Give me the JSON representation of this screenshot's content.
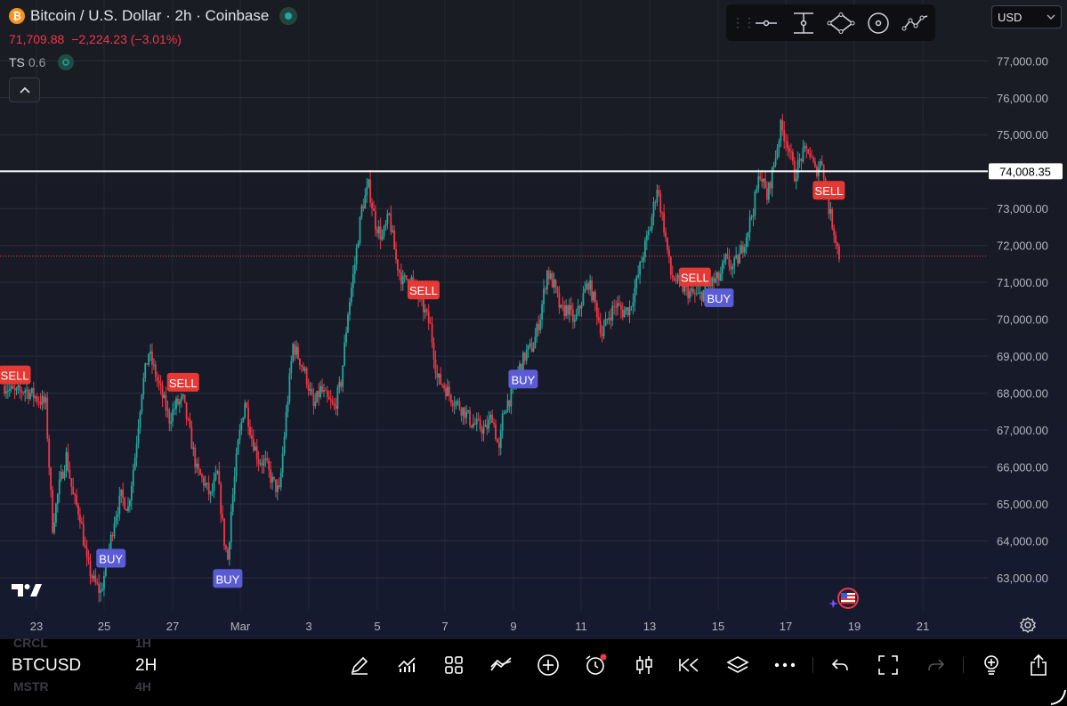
{
  "header": {
    "title": "Bitcoin / U.S. Dollar · 2h · Coinbase",
    "btc_glyph": "₿",
    "price": "71,709.88",
    "change": "−2,224.23 (−3.01%)",
    "ts_label": "TS",
    "ts_value": "0.6"
  },
  "currency_select": {
    "value": "USD"
  },
  "colors": {
    "up": "#26a69a",
    "down": "#f23645",
    "buy": "#5b5bd6",
    "sell": "#e53935",
    "bg": "#1a1c23"
  },
  "price_axis": {
    "labels": [
      "77,000.00",
      "76,000.00",
      "75,000.00",
      "73,000.00",
      "72,000.00",
      "71,000.00",
      "70,000.00",
      "69,000.00",
      "68,000.00",
      "67,000.00",
      "66,000.00",
      "65,000.00",
      "64,000.00",
      "63,000.00"
    ],
    "level_label": "74,008.35"
  },
  "time_axis": {
    "labels": [
      "23",
      "25",
      "27",
      "Mar",
      "3",
      "5",
      "7",
      "9",
      "11",
      "13",
      "15",
      "17",
      "19",
      "21"
    ]
  },
  "chart_data": {
    "type": "candlestick",
    "symbol": "BTCUSD",
    "interval": "2H",
    "ylim": [
      62000,
      77500
    ],
    "horizontal_line": 74008.35,
    "last_price": 71709.88,
    "x_ticks": [
      "23",
      "25",
      "27",
      "Mar",
      "3",
      "5",
      "7",
      "9",
      "11",
      "13",
      "15",
      "17",
      "19",
      "21"
    ],
    "close_path": [
      [
        0,
        68200
      ],
      [
        3,
        68000
      ],
      [
        6,
        68100
      ],
      [
        9,
        67900
      ],
      [
        12,
        67700
      ],
      [
        14,
        64400
      ],
      [
        16,
        65500
      ],
      [
        18,
        66300
      ],
      [
        20,
        65200
      ],
      [
        22,
        64700
      ],
      [
        24,
        63400
      ],
      [
        26,
        62900
      ],
      [
        28,
        62600
      ],
      [
        30,
        63500
      ],
      [
        32,
        64600
      ],
      [
        34,
        65200
      ],
      [
        36,
        64900
      ],
      [
        38,
        66300
      ],
      [
        40,
        68100
      ],
      [
        42,
        69100
      ],
      [
        44,
        68500
      ],
      [
        46,
        67900
      ],
      [
        48,
        67300
      ],
      [
        50,
        67700
      ],
      [
        52,
        67800
      ],
      [
        54,
        66900
      ],
      [
        56,
        65900
      ],
      [
        58,
        65600
      ],
      [
        60,
        65200
      ],
      [
        62,
        65800
      ],
      [
        64,
        64000
      ],
      [
        65,
        63500
      ],
      [
        66,
        64800
      ],
      [
        68,
        66600
      ],
      [
        70,
        67800
      ],
      [
        72,
        66800
      ],
      [
        74,
        66200
      ],
      [
        76,
        66100
      ],
      [
        78,
        65600
      ],
      [
        80,
        65300
      ],
      [
        82,
        67400
      ],
      [
        84,
        69300
      ],
      [
        86,
        68900
      ],
      [
        88,
        68400
      ],
      [
        90,
        67600
      ],
      [
        92,
        68100
      ],
      [
        94,
        67800
      ],
      [
        96,
        67600
      ],
      [
        98,
        68300
      ],
      [
        100,
        70200
      ],
      [
        102,
        71500
      ],
      [
        104,
        73000
      ],
      [
        106,
        73600
      ],
      [
        108,
        72600
      ],
      [
        110,
        72200
      ],
      [
        112,
        72800
      ],
      [
        114,
        71600
      ],
      [
        116,
        71000
      ],
      [
        118,
        71200
      ],
      [
        120,
        70700
      ],
      [
        122,
        70300
      ],
      [
        124,
        69800
      ],
      [
        126,
        68400
      ],
      [
        128,
        68200
      ],
      [
        130,
        67900
      ],
      [
        132,
        67700
      ],
      [
        134,
        67500
      ],
      [
        136,
        67200
      ],
      [
        138,
        67100
      ],
      [
        140,
        67000
      ],
      [
        142,
        67400
      ],
      [
        144,
        66400
      ],
      [
        145,
        67300
      ],
      [
        146,
        67700
      ],
      [
        148,
        68000
      ],
      [
        150,
        68700
      ],
      [
        152,
        69100
      ],
      [
        154,
        69300
      ],
      [
        156,
        70100
      ],
      [
        158,
        71300
      ],
      [
        160,
        70900
      ],
      [
        162,
        70200
      ],
      [
        164,
        70300
      ],
      [
        166,
        69900
      ],
      [
        168,
        70500
      ],
      [
        170,
        71000
      ],
      [
        172,
        70400
      ],
      [
        174,
        69600
      ],
      [
        176,
        70100
      ],
      [
        178,
        70400
      ],
      [
        180,
        70200
      ],
      [
        182,
        70300
      ],
      [
        184,
        71000
      ],
      [
        186,
        71800
      ],
      [
        188,
        72500
      ],
      [
        190,
        73600
      ],
      [
        192,
        72500
      ],
      [
        194,
        71200
      ],
      [
        196,
        71000
      ],
      [
        198,
        70800
      ],
      [
        200,
        70700
      ],
      [
        202,
        70600
      ],
      [
        204,
        70800
      ],
      [
        206,
        71000
      ],
      [
        208,
        71100
      ],
      [
        210,
        71600
      ],
      [
        212,
        71400
      ],
      [
        214,
        71700
      ],
      [
        216,
        72300
      ],
      [
        218,
        73000
      ],
      [
        220,
        74000
      ],
      [
        222,
        73300
      ],
      [
        224,
        74200
      ],
      [
        226,
        75200
      ],
      [
        228,
        74800
      ],
      [
        230,
        73900
      ],
      [
        232,
        74400
      ],
      [
        234,
        74600
      ],
      [
        236,
        74000
      ],
      [
        238,
        74300
      ],
      [
        240,
        73000
      ],
      [
        242,
        72200
      ],
      [
        243,
        71710
      ]
    ],
    "signals": [
      {
        "type": "SELL",
        "label": "SELL",
        "t": 3
      },
      {
        "type": "BUY",
        "label": "BUY",
        "t": 31
      },
      {
        "type": "SELL",
        "label": "SELL",
        "t": 52
      },
      {
        "type": "BUY",
        "label": "BUY",
        "t": 65
      },
      {
        "type": "SELL",
        "label": "SELL",
        "t": 122
      },
      {
        "type": "BUY",
        "label": "BUY",
        "t": 151
      },
      {
        "type": "SELL",
        "label": "SELL",
        "t": 201
      },
      {
        "type": "BUY",
        "label": "BUY",
        "t": 208
      },
      {
        "type": "SELL",
        "label": "SELL",
        "t": 240
      }
    ]
  },
  "bottom": {
    "symbol": "BTCUSD",
    "interval": "2H",
    "ghost_rows": [
      {
        "symbol": "CRCL",
        "interval": "1H"
      },
      {
        "symbol": "MSTR",
        "interval": "4H"
      }
    ]
  }
}
